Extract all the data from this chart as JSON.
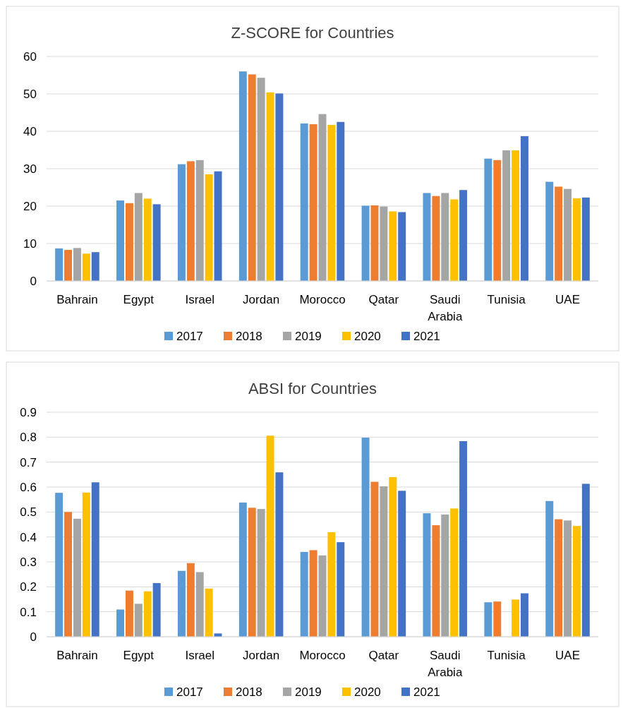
{
  "chart_data": [
    {
      "type": "bar",
      "title": "Z-SCORE for Countries",
      "categories": [
        "Bahrain",
        "Egypt",
        "Israel",
        "Jordan",
        "Morocco",
        "Qatar",
        "Saudi Arabia",
        "Tunisia",
        "UAE"
      ],
      "series": [
        {
          "name": "2017",
          "color": "#5b9bd5",
          "values": [
            8.7,
            21.5,
            31.2,
            56.0,
            42.1,
            20.1,
            23.5,
            32.7,
            26.5
          ]
        },
        {
          "name": "2018",
          "color": "#ed7d31",
          "values": [
            8.3,
            20.8,
            32.0,
            55.2,
            41.9,
            20.2,
            22.7,
            32.3,
            25.2
          ]
        },
        {
          "name": "2019",
          "color": "#a5a5a5",
          "values": [
            8.8,
            23.5,
            32.3,
            54.3,
            44.6,
            19.9,
            23.5,
            34.9,
            24.6
          ]
        },
        {
          "name": "2020",
          "color": "#ffc000",
          "values": [
            7.3,
            22.0,
            28.5,
            50.4,
            41.7,
            18.6,
            21.8,
            34.9,
            22.1
          ]
        },
        {
          "name": "2021",
          "color": "#4472c4",
          "values": [
            7.7,
            20.5,
            29.3,
            50.1,
            42.5,
            18.4,
            24.3,
            38.7,
            22.3
          ]
        }
      ],
      "ylim": [
        0,
        60
      ],
      "yticks": [
        0,
        10,
        20,
        30,
        40,
        50,
        60
      ],
      "grid": "y",
      "legend": "bottom"
    },
    {
      "type": "bar",
      "title": "ABSI for Countries",
      "categories": [
        "Bahrain",
        "Egypt",
        "Israel",
        "Jordan",
        "Morocco",
        "Qatar",
        "Saudi Arabia",
        "Tunisia",
        "UAE"
      ],
      "series": [
        {
          "name": "2017",
          "color": "#5b9bd5",
          "values": [
            0.577,
            0.109,
            0.264,
            0.538,
            0.34,
            0.798,
            0.495,
            0.138,
            0.544
          ]
        },
        {
          "name": "2018",
          "color": "#ed7d31",
          "values": [
            0.5,
            0.185,
            0.295,
            0.517,
            0.347,
            0.621,
            0.447,
            0.141,
            0.471
          ]
        },
        {
          "name": "2019",
          "color": "#a5a5a5",
          "values": [
            0.473,
            0.132,
            0.259,
            0.512,
            0.326,
            0.603,
            0.49,
            null,
            0.466
          ]
        },
        {
          "name": "2020",
          "color": "#ffc000",
          "values": [
            0.578,
            0.182,
            0.193,
            0.806,
            0.419,
            0.64,
            0.514,
            0.149,
            0.444
          ]
        },
        {
          "name": "2021",
          "color": "#4472c4",
          "values": [
            0.619,
            0.215,
            0.013,
            0.659,
            0.379,
            0.585,
            0.784,
            0.174,
            0.613
          ]
        }
      ],
      "ylim": [
        0,
        0.9
      ],
      "yticks": [
        0,
        0.1,
        0.2,
        0.3,
        0.4,
        0.5,
        0.6,
        0.7,
        0.8,
        0.9
      ],
      "grid": "y",
      "legend": "bottom"
    }
  ]
}
